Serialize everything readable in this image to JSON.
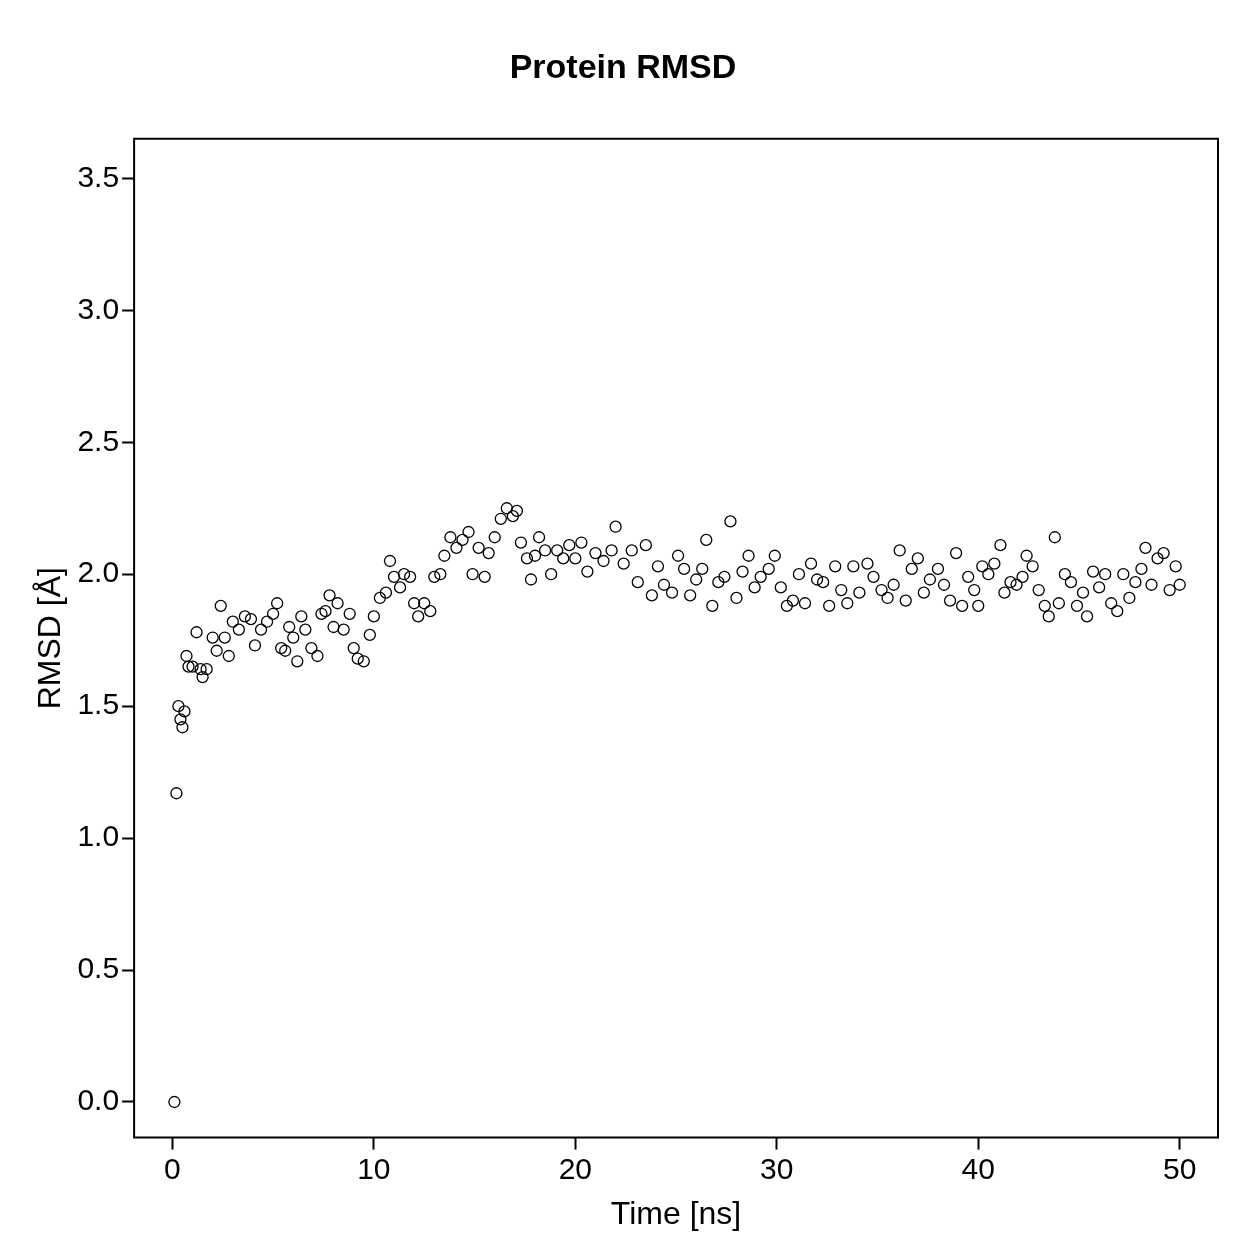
{
  "chart_data": {
    "type": "scatter",
    "title": "Protein RMSD",
    "xlabel": "Time [ns]",
    "ylabel": "RMSD [Å]",
    "marker": "circle",
    "grid": false,
    "legend": false,
    "xlim": [
      -1.9,
      51.9
    ],
    "ylim": [
      -0.135,
      3.65
    ],
    "xticks": [
      0,
      10,
      20,
      30,
      40,
      50
    ],
    "yticks": [
      {
        "value": 0,
        "label": "0.0"
      },
      0.5,
      {
        "value": 1,
        "label": "1.0"
      },
      1.5,
      {
        "value": 2,
        "label": "2.0"
      },
      2.5,
      {
        "value": 3,
        "label": "3.0"
      },
      3.5
    ],
    "series": [
      {
        "color": "#000000",
        "x": [
          0.1,
          0.2,
          0.3,
          0.4,
          0.5,
          0.6,
          0.7,
          0.8,
          1.0,
          1.2,
          1.4,
          1.5,
          1.7,
          2.0,
          2.2,
          2.4,
          2.6,
          2.8,
          3.0,
          3.3,
          3.6,
          3.9,
          4.1,
          4.4,
          4.7,
          5.0,
          5.2,
          5.4,
          5.6,
          5.8,
          6.0,
          6.2,
          6.4,
          6.6,
          6.9,
          7.2,
          7.4,
          7.6,
          7.8,
          8.0,
          8.2,
          8.5,
          8.8,
          9.0,
          9.2,
          9.5,
          9.8,
          10.0,
          10.3,
          10.6,
          10.8,
          11.0,
          11.3,
          11.5,
          11.8,
          12.0,
          12.2,
          12.5,
          12.8,
          13.0,
          13.3,
          13.5,
          13.8,
          14.1,
          14.4,
          14.7,
          14.9,
          15.2,
          15.5,
          15.7,
          16.0,
          16.3,
          16.6,
          16.9,
          17.1,
          17.3,
          17.6,
          17.8,
          18.0,
          18.2,
          18.5,
          18.8,
          19.1,
          19.4,
          19.7,
          20.0,
          20.3,
          20.6,
          21.0,
          21.4,
          21.8,
          22.0,
          22.4,
          22.8,
          23.1,
          23.5,
          23.8,
          24.1,
          24.4,
          24.8,
          25.1,
          25.4,
          25.7,
          26.0,
          26.3,
          26.5,
          26.8,
          27.1,
          27.4,
          27.7,
          28.0,
          28.3,
          28.6,
          28.9,
          29.2,
          29.6,
          29.9,
          30.2,
          30.5,
          30.8,
          31.1,
          31.4,
          31.7,
          32.0,
          32.3,
          32.6,
          32.9,
          33.2,
          33.5,
          33.8,
          34.1,
          34.5,
          34.8,
          35.2,
          35.5,
          35.8,
          36.1,
          36.4,
          36.7,
          37.0,
          37.3,
          37.6,
          38.0,
          38.3,
          38.6,
          38.9,
          39.2,
          39.5,
          39.8,
          40.0,
          40.2,
          40.5,
          40.8,
          41.1,
          41.3,
          41.6,
          41.9,
          42.2,
          42.4,
          42.7,
          43.0,
          43.3,
          43.5,
          43.8,
          44.0,
          44.3,
          44.6,
          44.9,
          45.2,
          45.4,
          45.7,
          46.0,
          46.3,
          46.6,
          46.9,
          47.2,
          47.5,
          47.8,
          48.1,
          48.3,
          48.6,
          48.9,
          49.2,
          49.5,
          49.8,
          50.0
        ],
        "values": [
          0.0,
          1.17,
          1.5,
          1.45,
          1.42,
          1.48,
          1.69,
          1.65,
          1.65,
          1.78,
          1.64,
          1.61,
          1.64,
          1.76,
          1.71,
          1.88,
          1.76,
          1.69,
          1.82,
          1.79,
          1.84,
          1.83,
          1.73,
          1.79,
          1.82,
          1.85,
          1.89,
          1.72,
          1.71,
          1.8,
          1.76,
          1.67,
          1.84,
          1.79,
          1.72,
          1.69,
          1.85,
          1.86,
          1.92,
          1.8,
          1.89,
          1.79,
          1.85,
          1.72,
          1.68,
          1.67,
          1.77,
          1.84,
          1.91,
          1.93,
          2.05,
          1.99,
          1.95,
          2.0,
          1.99,
          1.89,
          1.84,
          1.89,
          1.86,
          1.99,
          2.0,
          2.07,
          2.14,
          2.1,
          2.13,
          2.16,
          2.0,
          2.1,
          1.99,
          2.08,
          2.14,
          2.21,
          2.25,
          2.22,
          2.24,
          2.12,
          2.06,
          1.98,
          2.07,
          2.14,
          2.09,
          2.0,
          2.09,
          2.06,
          2.11,
          2.06,
          2.12,
          2.01,
          2.08,
          2.05,
          2.09,
          2.18,
          2.04,
          2.09,
          1.97,
          2.11,
          1.92,
          2.03,
          1.96,
          1.93,
          2.07,
          2.02,
          1.92,
          1.98,
          2.02,
          2.13,
          1.88,
          1.97,
          1.99,
          2.2,
          1.91,
          2.01,
          2.07,
          1.95,
          1.99,
          2.02,
          2.07,
          1.95,
          1.88,
          1.9,
          2.0,
          1.89,
          2.04,
          1.98,
          1.97,
          1.88,
          2.03,
          1.94,
          1.89,
          2.03,
          1.93,
          2.04,
          1.99,
          1.94,
          1.91,
          1.96,
          2.09,
          1.9,
          2.02,
          2.06,
          1.93,
          1.98,
          2.02,
          1.96,
          1.9,
          2.08,
          1.88,
          1.99,
          1.94,
          1.88,
          2.03,
          2.0,
          2.04,
          2.11,
          1.93,
          1.97,
          1.96,
          1.99,
          2.07,
          2.03,
          1.94,
          1.88,
          1.84,
          2.14,
          1.89,
          2.0,
          1.97,
          1.88,
          1.93,
          1.84,
          2.01,
          1.95,
          2.0,
          1.89,
          1.86,
          2.0,
          1.91,
          1.97,
          2.02,
          2.1,
          1.96,
          2.06,
          2.08,
          1.94,
          2.03,
          1.96
        ]
      }
    ]
  }
}
